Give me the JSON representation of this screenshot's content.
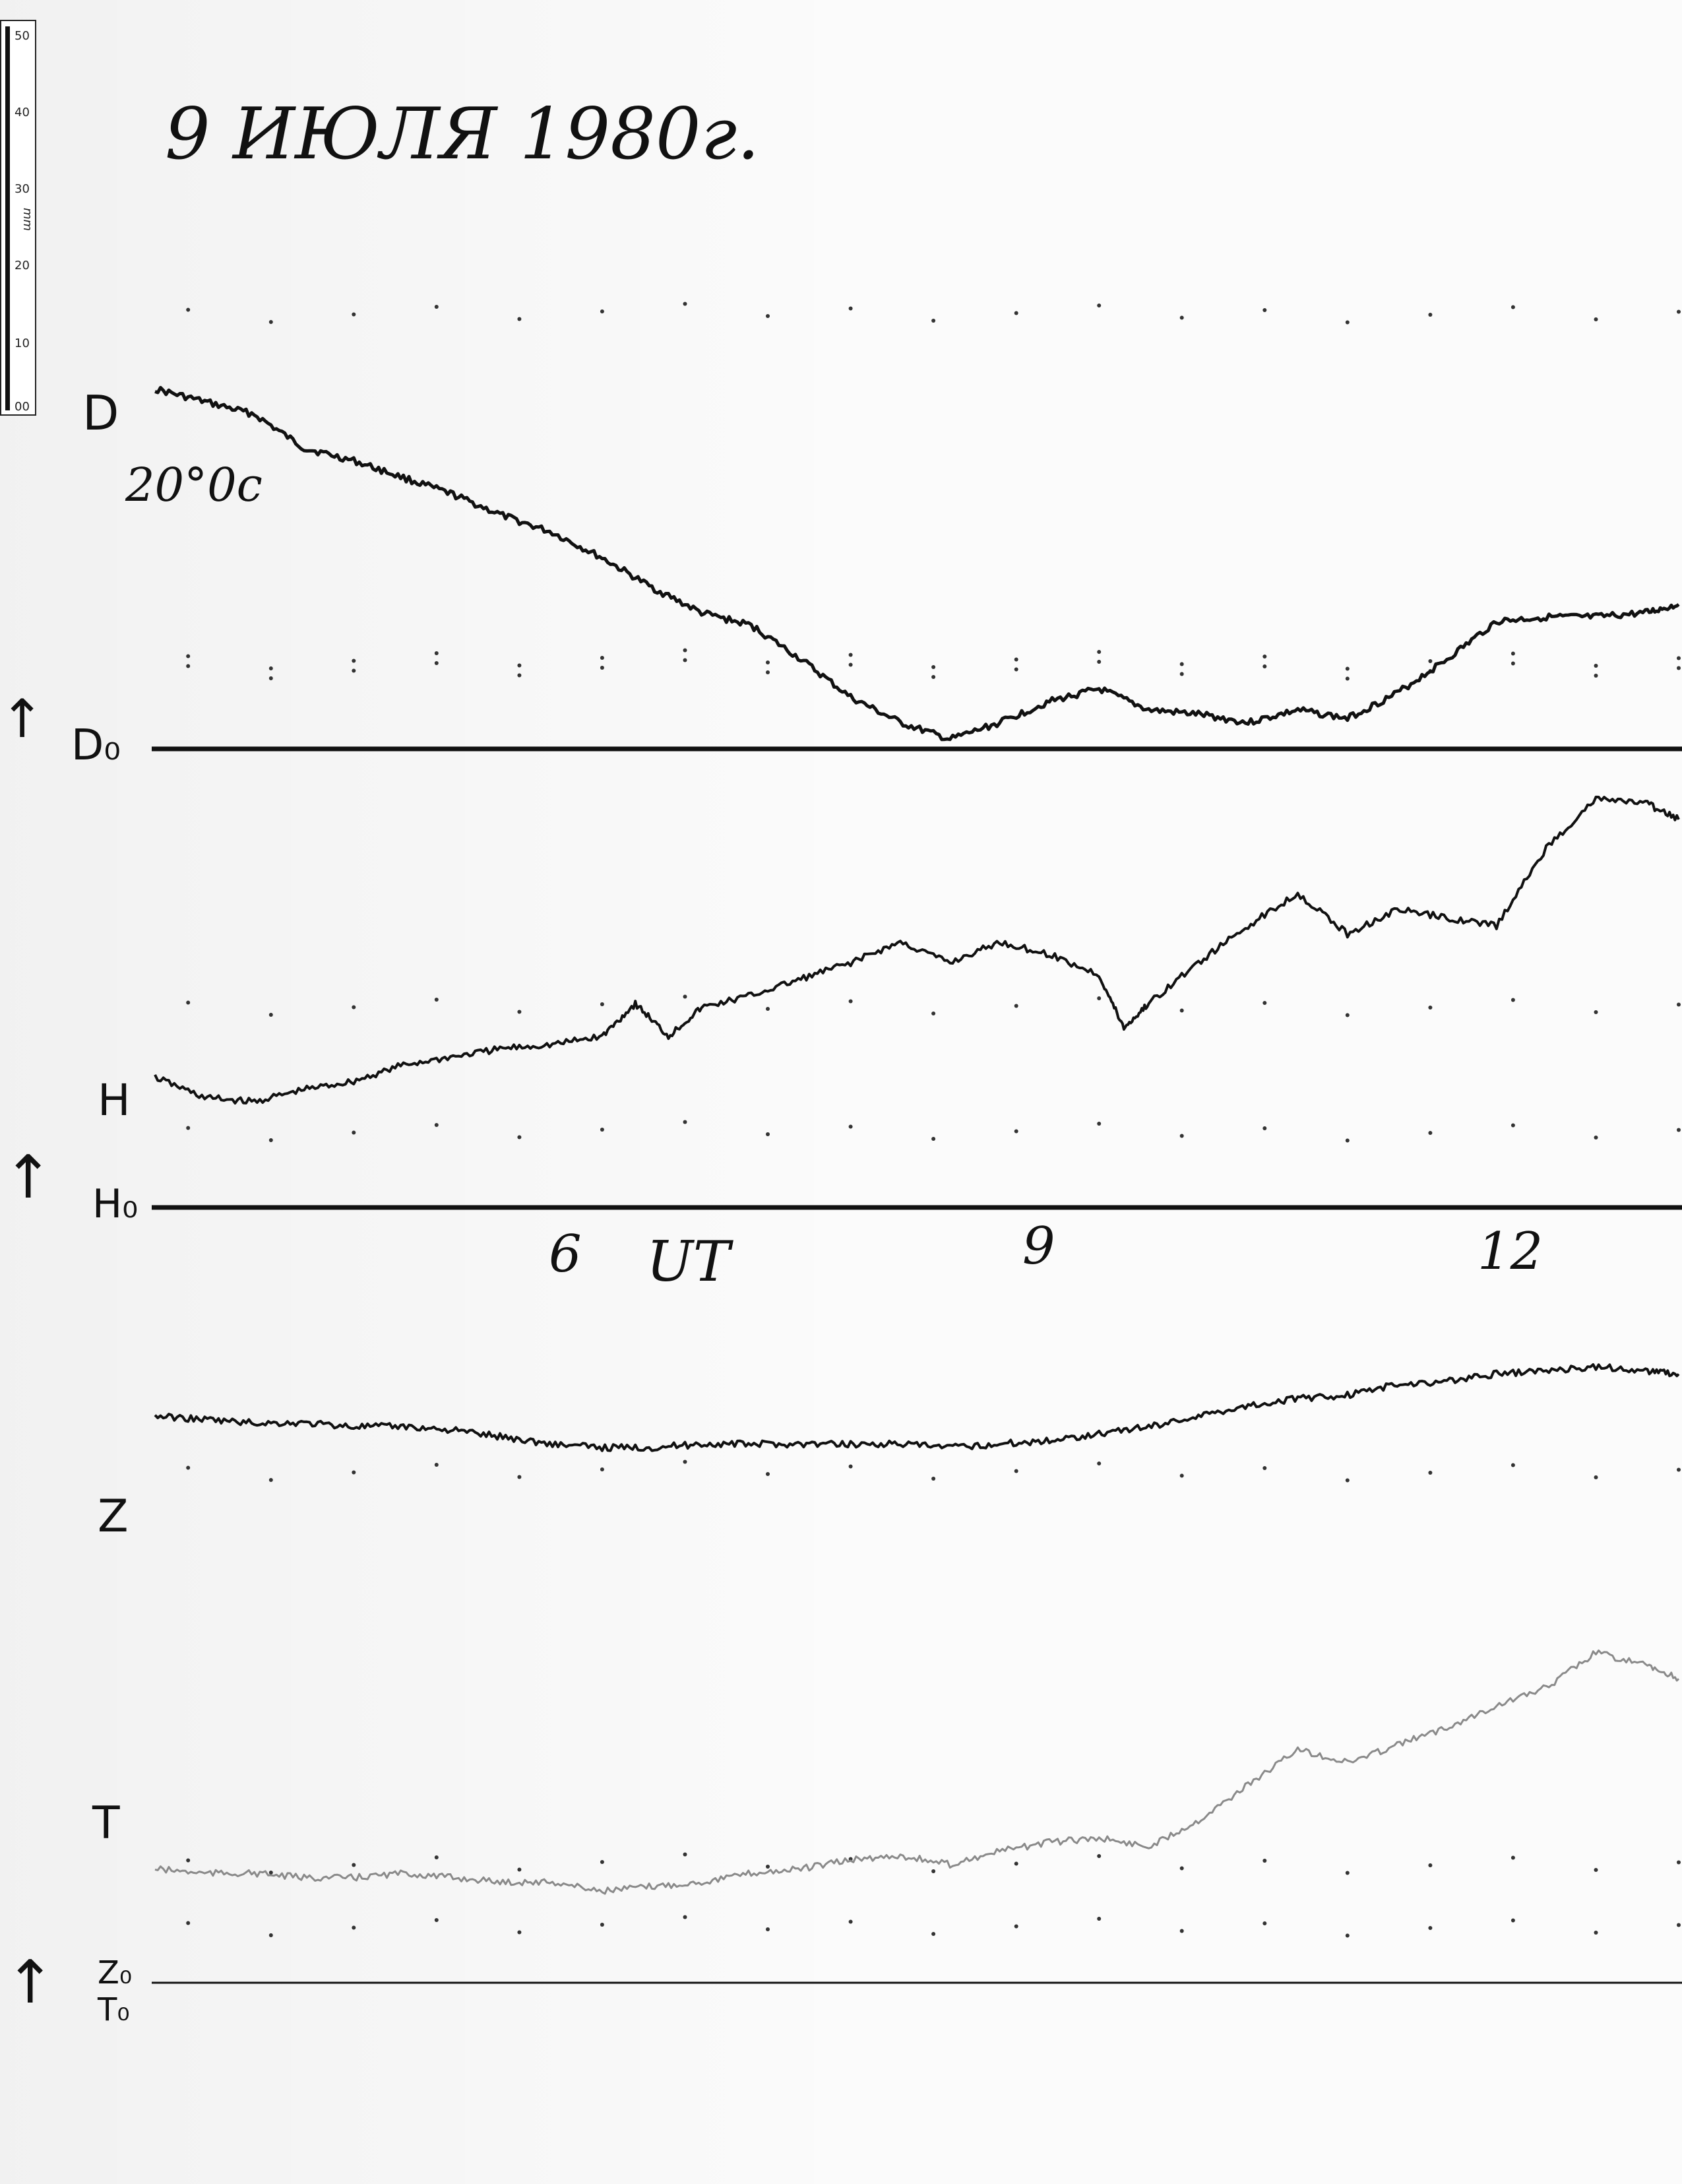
{
  "chart_data": {
    "type": "line",
    "title": "9 ИЮЛЯ 1980г.",
    "xlabel": "UT",
    "x_ticks": [
      "6",
      "9",
      "12"
    ],
    "x_tick_values": [
      6,
      9,
      12
    ],
    "xlim": [
      3.3,
      12.5
    ],
    "annotation": "20°0с",
    "ruler": {
      "unit": "mm",
      "ticks": [
        "50",
        "40",
        "30",
        "20",
        "10",
        "00"
      ]
    },
    "arrow_glyph": "↑",
    "baselines": [
      {
        "name": "D₀"
      },
      {
        "name": "H₀"
      },
      {
        "name": "Z₀",
        "second_name": "T₀"
      }
    ],
    "series": [
      {
        "name": "D",
        "x": [
          3.3,
          3.6,
          3.9,
          4.2,
          4.5,
          4.8,
          5.1,
          5.4,
          5.7,
          6.0,
          6.3,
          6.6,
          6.9,
          7.2,
          7.5,
          7.8,
          8.1,
          8.4,
          8.7,
          9.0,
          9.3,
          9.6,
          9.9,
          10.2,
          10.5,
          10.8,
          11.1,
          11.4,
          11.7,
          12.0,
          12.3,
          12.5
        ],
        "values": [
          0.86,
          0.83,
          0.8,
          0.72,
          0.69,
          0.65,
          0.61,
          0.56,
          0.52,
          0.46,
          0.39,
          0.33,
          0.3,
          0.22,
          0.13,
          0.07,
          0.03,
          0.07,
          0.12,
          0.15,
          0.1,
          0.09,
          0.07,
          0.1,
          0.08,
          0.14,
          0.22,
          0.31,
          0.32,
          0.32,
          0.33,
          0.35
        ]
      },
      {
        "name": "H",
        "x": [
          3.3,
          3.6,
          3.9,
          4.2,
          4.5,
          4.8,
          5.1,
          5.4,
          5.7,
          6.0,
          6.2,
          6.4,
          6.6,
          6.9,
          7.2,
          7.5,
          7.8,
          8.1,
          8.4,
          8.7,
          9.0,
          9.15,
          9.3,
          9.6,
          9.9,
          10.2,
          10.5,
          10.8,
          11.1,
          11.4,
          11.7,
          12.0,
          12.3,
          12.5
        ],
        "values": [
          0.27,
          0.22,
          0.21,
          0.24,
          0.26,
          0.3,
          0.32,
          0.34,
          0.35,
          0.37,
          0.45,
          0.37,
          0.44,
          0.47,
          0.51,
          0.55,
          0.6,
          0.55,
          0.6,
          0.57,
          0.52,
          0.39,
          0.45,
          0.55,
          0.64,
          0.72,
          0.62,
          0.68,
          0.66,
          0.64,
          0.83,
          0.95,
          0.94,
          0.9
        ]
      },
      {
        "name": "Z",
        "x": [
          3.3,
          3.6,
          3.9,
          4.2,
          4.5,
          4.8,
          5.1,
          5.4,
          5.7,
          6.0,
          6.3,
          6.6,
          6.9,
          7.2,
          7.5,
          7.8,
          8.1,
          8.4,
          8.7,
          9.0,
          9.3,
          9.6,
          9.9,
          10.2,
          10.5,
          10.8,
          11.1,
          11.4,
          11.7,
          12.0,
          12.3,
          12.5
        ],
        "values": [
          0.63,
          0.62,
          0.61,
          0.61,
          0.6,
          0.6,
          0.59,
          0.57,
          0.55,
          0.54,
          0.54,
          0.55,
          0.55,
          0.55,
          0.55,
          0.55,
          0.54,
          0.55,
          0.56,
          0.58,
          0.6,
          0.63,
          0.66,
          0.68,
          0.69,
          0.72,
          0.73,
          0.75,
          0.76,
          0.77,
          0.76,
          0.75
        ]
      },
      {
        "name": "T",
        "x": [
          3.3,
          3.6,
          3.9,
          4.2,
          4.5,
          4.8,
          5.1,
          5.4,
          5.7,
          6.0,
          6.3,
          6.6,
          6.9,
          7.2,
          7.5,
          7.8,
          8.1,
          8.4,
          8.7,
          9.0,
          9.3,
          9.6,
          9.9,
          10.2,
          10.5,
          10.8,
          11.1,
          11.4,
          11.7,
          12.0,
          12.3,
          12.5
        ],
        "values": [
          0.28,
          0.27,
          0.27,
          0.26,
          0.26,
          0.27,
          0.26,
          0.25,
          0.25,
          0.23,
          0.24,
          0.25,
          0.27,
          0.28,
          0.3,
          0.31,
          0.29,
          0.32,
          0.34,
          0.35,
          0.33,
          0.39,
          0.47,
          0.55,
          0.52,
          0.56,
          0.6,
          0.65,
          0.69,
          0.77,
          0.74,
          0.71
        ]
      }
    ]
  }
}
